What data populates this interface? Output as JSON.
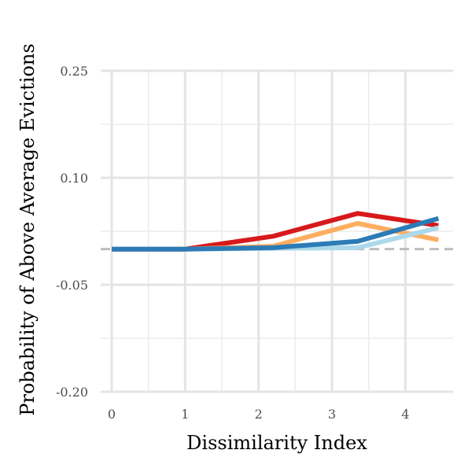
{
  "chart_data": {
    "type": "line",
    "title": "",
    "xlabel": "Dissimilarity Index",
    "ylabel": "Probability of Above Average Evictions",
    "xlim": [
      -0.15,
      4.65
    ],
    "ylim": [
      -0.2,
      0.25
    ],
    "x_ticks": [
      "0",
      "1",
      "2",
      "3",
      "4"
    ],
    "y_ticks": [
      "0.25",
      "0.10",
      "-0.05",
      "-0.20"
    ],
    "y_tick_values": [
      0.25,
      0.1,
      -0.05,
      -0.2
    ],
    "grid": true,
    "legend": "none",
    "reference_line": {
      "y": 0.0,
      "style": "dashed",
      "color": "#bdbdbd"
    },
    "series": [
      {
        "color": "#d7191c",
        "x": [
          0,
          1,
          2.2,
          3.35,
          4.45
        ],
        "y": [
          0.0,
          0.0,
          0.018,
          0.05,
          0.033
        ]
      },
      {
        "color": "#fdae61",
        "x": [
          0,
          1,
          2.2,
          3.35,
          4.45
        ],
        "y": [
          0.0,
          0.0,
          0.004,
          0.036,
          0.013
        ]
      },
      {
        "color": "#abd9e9",
        "x": [
          0,
          1,
          2.2,
          3.35,
          4.45
        ],
        "y": [
          0.0,
          0.0,
          0.001,
          0.002,
          0.03
        ]
      },
      {
        "color": "#2c7bb6",
        "x": [
          0,
          1,
          2.2,
          3.35,
          4.45
        ],
        "y": [
          0.0,
          0.0,
          0.002,
          0.011,
          0.043
        ]
      }
    ]
  }
}
